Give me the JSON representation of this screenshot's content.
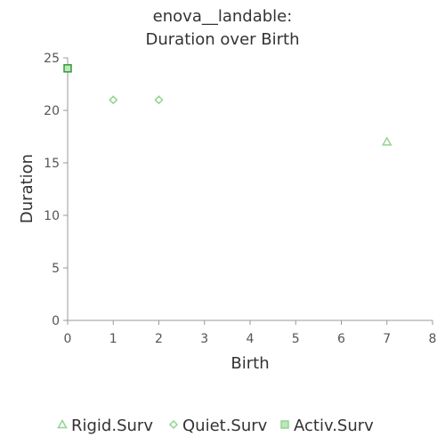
{
  "chart_data": {
    "type": "scatter",
    "title_lines": [
      "enova__landable:",
      "Duration over Birth"
    ],
    "xlabel": "Birth",
    "ylabel": "Duration",
    "xlim": [
      0,
      8
    ],
    "ylim": [
      0,
      25
    ],
    "xticks": [
      0,
      1,
      2,
      3,
      4,
      5,
      6,
      7,
      8
    ],
    "yticks": [
      0,
      5,
      10,
      15,
      20,
      25
    ],
    "grid": false,
    "legend_position": "bottom",
    "series": [
      {
        "name": "Rigid.Surv",
        "marker": "triangle",
        "color": "#8fd68f",
        "points": [
          {
            "x": 7,
            "y": 17
          }
        ]
      },
      {
        "name": "Quiet.Surv",
        "marker": "diamond",
        "color": "#8fd68f",
        "points": [
          {
            "x": 1,
            "y": 21
          },
          {
            "x": 2,
            "y": 21
          }
        ]
      },
      {
        "name": "Activ.Surv",
        "marker": "square",
        "color": "#2e9e2e",
        "points": [
          {
            "x": 0,
            "y": 24
          }
        ]
      }
    ]
  }
}
